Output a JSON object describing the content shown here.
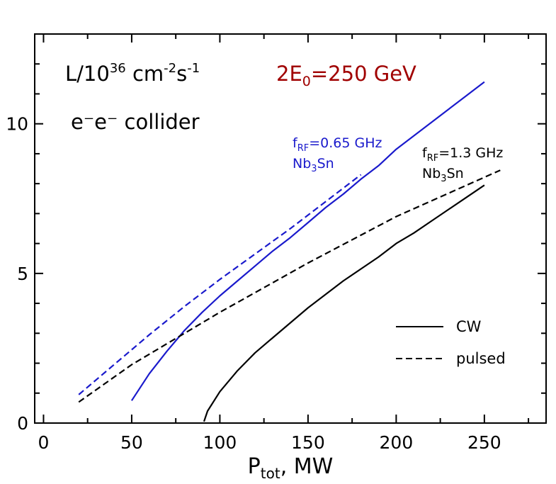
{
  "chart_data": {
    "type": "line",
    "xlabel": "P",
    "xlabel_sub": "tot",
    "xlabel_rest": ", MW",
    "ylabel": "",
    "xlim": [
      -5,
      285
    ],
    "ylim": [
      0,
      13
    ],
    "x_ticks": [
      0,
      50,
      100,
      150,
      200,
      250
    ],
    "x_tick_labels": [
      "0",
      "50",
      "100",
      "150",
      "200",
      "250"
    ],
    "y_ticks": [
      0,
      5,
      10
    ],
    "y_tick_labels": [
      "0",
      "5",
      "10"
    ],
    "annotations": {
      "lum_main": "L/10",
      "lum_exp36": "36",
      "lum_cm": " cm",
      "lum_exp2": "-2",
      "lum_s": "s",
      "lum_exp1": "-1",
      "energy_pre": "2E",
      "energy_sub": "0",
      "energy_post": "=250 GeV",
      "collider": "e⁻e⁻ collider",
      "blue_f": "f",
      "blue_f_sub": "RF",
      "blue_f_val": "=0.65 GHz",
      "blue_nb": "Nb",
      "blue_nb_sub": "3",
      "blue_nb_post": "Sn",
      "black_f": "f",
      "black_f_sub": "RF",
      "black_f_val": "=1.3 GHz",
      "black_nb": "Nb",
      "black_nb_sub": "3",
      "black_nb_post": "Sn"
    },
    "legend": [
      {
        "label": "CW",
        "style": "solid"
      },
      {
        "label": "pulsed",
        "style": "dashed"
      }
    ],
    "series": [
      {
        "name": "0.65 GHz CW",
        "color": "#1a1acc",
        "style": "solid",
        "x": [
          50,
          60,
          70,
          80,
          90,
          100,
          110,
          120,
          130,
          140,
          150,
          160,
          170,
          180,
          190,
          200,
          210,
          220,
          230,
          240,
          250
        ],
        "y": [
          0.75,
          1.65,
          2.4,
          3.1,
          3.7,
          4.25,
          4.75,
          5.25,
          5.75,
          6.2,
          6.7,
          7.2,
          7.65,
          8.15,
          8.6,
          9.15,
          9.6,
          10.05,
          10.5,
          10.95,
          11.4
        ]
      },
      {
        "name": "0.65 GHz pulsed",
        "color": "#1a1acc",
        "style": "dashed",
        "x": [
          20,
          40,
          60,
          80,
          100,
          120,
          140,
          160,
          180
        ],
        "y": [
          0.95,
          1.95,
          2.95,
          3.9,
          4.8,
          5.65,
          6.5,
          7.4,
          8.3
        ]
      },
      {
        "name": "1.3 GHz CW",
        "color": "#000000",
        "style": "solid",
        "x": [
          91,
          93,
          100,
          110,
          120,
          130,
          140,
          150,
          160,
          170,
          180,
          190,
          200,
          210,
          220,
          230,
          240,
          250
        ],
        "y": [
          0.05,
          0.4,
          1.05,
          1.75,
          2.35,
          2.85,
          3.35,
          3.85,
          4.3,
          4.75,
          5.15,
          5.55,
          6.0,
          6.35,
          6.75,
          7.15,
          7.55,
          7.95
        ]
      },
      {
        "name": "1.3 GHz pulsed",
        "color": "#000000",
        "style": "dashed",
        "x": [
          20,
          50,
          100,
          150,
          200,
          259
        ],
        "y": [
          0.7,
          1.95,
          3.7,
          5.35,
          6.9,
          8.45
        ]
      }
    ]
  }
}
